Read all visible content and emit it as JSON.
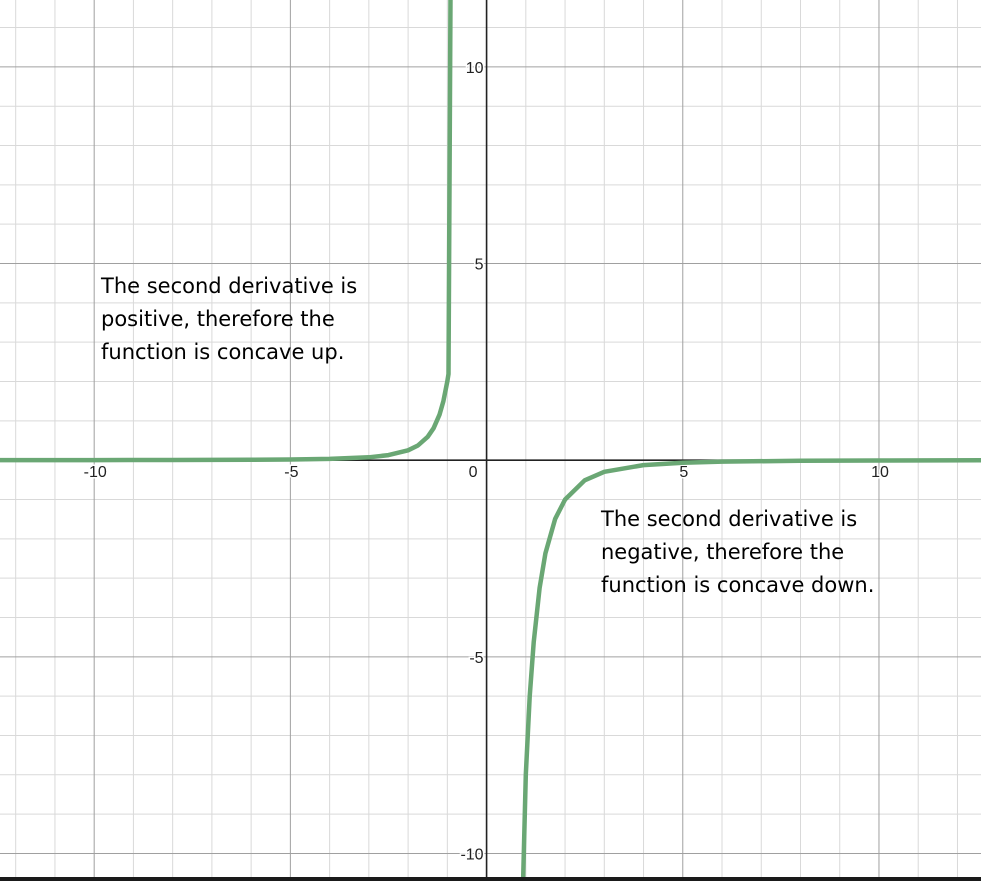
{
  "chart_data": {
    "type": "line",
    "title": "",
    "xlabel": "",
    "ylabel": "",
    "xlim": [
      -12.4,
      12.6
    ],
    "ylim": [
      -10.7,
      11.7
    ],
    "grid": true,
    "x_ticks": [
      -10,
      -5,
      0,
      5,
      10
    ],
    "x_tick_labels": [
      "-10",
      "-5",
      "0",
      "5",
      "10"
    ],
    "y_ticks": [
      10,
      5,
      -5,
      -10
    ],
    "y_tick_labels": [
      "10",
      "5",
      "-5",
      "-10"
    ],
    "series": [
      {
        "color": "#6aa774",
        "x": [
          -12.4,
          -10,
          -8,
          -6,
          -5,
          -4,
          -3,
          -2.5,
          -2,
          -1.75,
          -1.5,
          -1.35,
          -1.2,
          -1.1,
          -1.0,
          -0.97,
          0.93,
          1.0,
          1.1,
          1.2,
          1.35,
          1.5,
          1.75,
          2,
          2.5,
          3,
          4,
          5,
          6,
          8,
          10,
          12.6
        ],
        "y": [
          0.001,
          0.002,
          0.004,
          0.009,
          0.016,
          0.031,
          0.074,
          0.128,
          0.25,
          0.373,
          0.593,
          0.813,
          1.157,
          1.503,
          2.0,
          2.19,
          -10.7,
          -8.0,
          -6.01,
          -4.63,
          -3.25,
          -2.37,
          -1.49,
          -1.0,
          -0.512,
          -0.296,
          -0.125,
          -0.064,
          -0.037,
          -0.016,
          -0.008,
          -0.004
        ]
      }
    ],
    "annotations": [
      {
        "lines": [
          "The second derivative is",
          "positive, therefore the",
          "function is concave up."
        ]
      },
      {
        "lines": [
          "The second derivative is",
          "negative, therefore the",
          "function is concave down."
        ]
      }
    ]
  }
}
